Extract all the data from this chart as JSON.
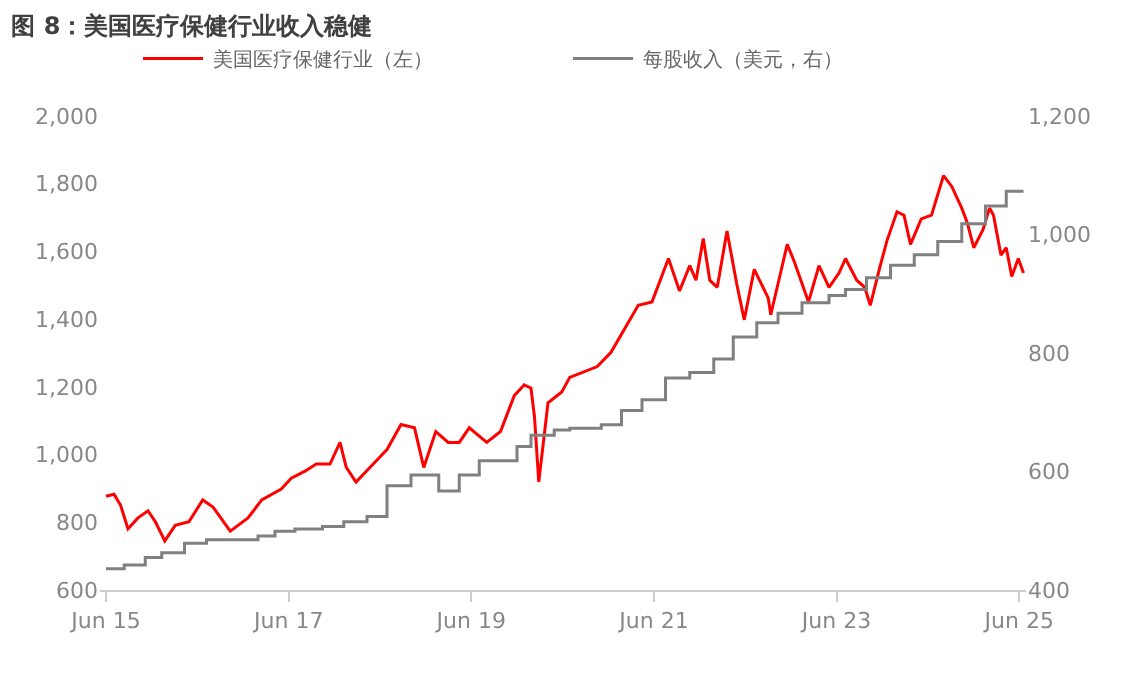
{
  "chart_data": {
    "type": "line",
    "title": "图 8：美国医疗保健行业收入稳健",
    "xlim": [
      "2015-05-20",
      "2025-07-10"
    ],
    "xticks": [
      {
        "value": "2015-06-13",
        "label": "Jun 15"
      },
      {
        "value": "2017-06-13",
        "label": "Jun 17"
      },
      {
        "value": "2019-06-13",
        "label": "Jun 19"
      },
      {
        "value": "2021-06-13",
        "label": "Jun 21"
      },
      {
        "value": "2023-06-13",
        "label": "Jun 23"
      },
      {
        "value": "2025-06-13",
        "label": "Jun 25"
      }
    ],
    "ylim": [
      600,
      2000
    ],
    "yticks": [
      {
        "value": 600,
        "label": "600"
      },
      {
        "value": 800,
        "label": "800"
      },
      {
        "value": 1000,
        "label": "1,000"
      },
      {
        "value": 1200,
        "label": "1,200"
      },
      {
        "value": 1400,
        "label": "1,400"
      },
      {
        "value": 1600,
        "label": "1,600"
      },
      {
        "value": 1800,
        "label": "1,800"
      },
      {
        "value": 2000,
        "label": "2,000"
      }
    ],
    "y2lim": [
      400,
      1200
    ],
    "y2ticks": [
      {
        "value": 400,
        "label": "400"
      },
      {
        "value": 600,
        "label": "600"
      },
      {
        "value": 800,
        "label": "800"
      },
      {
        "value": 1000,
        "label": "1,000"
      },
      {
        "value": 1200,
        "label": "1,200"
      }
    ],
    "legend": "top",
    "series": [
      {
        "name": "美国医疗保健行业（左）",
        "color": "#ff0000",
        "x": [
          "2015-06-13",
          "2015-07-15",
          "2015-08-10",
          "2015-09-09",
          "2015-10-19",
          "2015-11-28",
          "2015-12-27",
          "2016-02-03",
          "2016-03-16",
          "2016-05-10",
          "2016-07-04",
          "2016-08-14",
          "2016-10-22",
          "2017-01-01",
          "2017-02-25",
          "2017-05-14",
          "2017-06-23",
          "2017-08-17",
          "2017-10-01",
          "2017-11-25",
          "2018-01-04",
          "2018-01-29",
          "2018-03-09",
          "2018-05-17",
          "2018-07-11",
          "2018-09-05",
          "2018-10-29",
          "2018-12-05",
          "2019-01-22",
          "2019-03-13",
          "2019-04-26",
          "2019-06-05",
          "2019-08-14",
          "2019-10-08",
          "2019-12-02",
          "2020-01-11",
          "2020-02-07",
          "2020-02-21",
          "2020-03-09",
          "2020-04-15",
          "2020-06-09",
          "2020-07-11",
          "2020-10-29",
          "2020-12-23",
          "2021-04-11",
          "2021-06-05",
          "2021-08-10",
          "2021-09-23",
          "2021-11-03",
          "2021-11-28",
          "2021-12-27",
          "2022-01-22",
          "2022-02-21",
          "2022-04-01",
          "2022-05-10",
          "2022-06-09",
          "2022-07-19",
          "2022-09-13",
          "2022-09-23",
          "2022-11-28",
          "2022-12-27",
          "2023-02-21",
          "2023-04-04",
          "2023-05-14",
          "2023-06-23",
          "2023-07-19",
          "2023-09-02",
          "2023-10-04",
          "2023-10-26",
          "2023-12-05",
          "2024-01-01",
          "2024-02-10",
          "2024-03-09",
          "2024-04-04",
          "2024-05-17",
          "2024-06-27",
          "2024-08-14",
          "2024-09-16",
          "2024-10-26",
          "2024-11-17",
          "2024-12-13",
          "2025-01-19",
          "2025-02-14",
          "2025-03-02",
          "2025-04-01",
          "2025-04-22",
          "2025-05-14",
          "2025-06-09",
          "2025-06-30"
        ],
        "values": [
          877,
          883,
          851,
          781,
          813,
          834,
          802,
          745,
          791,
          802,
          866,
          845,
          774,
          813,
          866,
          898,
          930,
          951,
          972,
          972,
          1036,
          962,
          919,
          972,
          1015,
          1089,
          1079,
          962,
          1068,
          1036,
          1036,
          1079,
          1036,
          1068,
          1174,
          1206,
          1196,
          1111,
          919,
          1153,
          1185,
          1228,
          1260,
          1302,
          1441,
          1451,
          1579,
          1483,
          1558,
          1515,
          1638,
          1515,
          1494,
          1660,
          1504,
          1398,
          1547,
          1462,
          1413,
          1621,
          1568,
          1451,
          1558,
          1494,
          1536,
          1579,
          1515,
          1494,
          1441,
          1558,
          1632,
          1717,
          1707,
          1621,
          1696,
          1707,
          1824,
          1792,
          1728,
          1685,
          1611,
          1664,
          1728,
          1707,
          1589,
          1611,
          1526,
          1579,
          1536
        ]
      },
      {
        "name": "每股收入（美元，右）",
        "color": "#808080",
        "type": "step",
        "axis": "y2",
        "x": [
          "2015-06-13",
          "2015-08-25",
          "2015-11-17",
          "2016-01-22",
          "2016-04-22",
          "2016-07-19",
          "2017-02-10",
          "2017-04-19",
          "2017-07-08",
          "2017-10-26",
          "2018-01-19",
          "2018-04-22",
          "2018-07-11",
          "2018-10-15",
          "2019-02-03",
          "2019-04-26",
          "2019-07-15",
          "2019-12-13",
          "2020-02-07",
          "2020-05-10",
          "2020-07-11",
          "2020-11-14",
          "2021-02-03",
          "2021-04-26",
          "2021-07-29",
          "2021-11-03",
          "2022-02-07",
          "2022-04-26",
          "2022-07-29",
          "2022-10-22",
          "2023-01-26",
          "2023-05-14",
          "2023-07-19",
          "2023-10-11",
          "2024-01-15",
          "2024-04-19",
          "2024-07-22",
          "2024-10-26",
          "2025-01-29",
          "2025-04-22",
          "2025-06-30"
        ],
        "values": [
          436,
          442,
          455,
          463,
          479,
          485,
          491,
          499,
          503,
          507,
          515,
          524,
          576,
          594,
          567,
          594,
          618,
          642,
          661,
          670,
          673,
          679,
          703,
          721,
          758,
          767,
          790,
          827,
          851,
          867,
          885,
          897,
          907,
          927,
          948,
          966,
          988,
          1018,
          1048,
          1073,
          1073
        ]
      }
    ]
  }
}
